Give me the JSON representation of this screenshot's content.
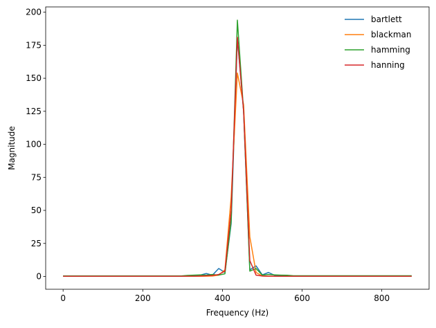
{
  "chart_data": {
    "type": "line",
    "x": [
      0,
      15.625,
      31.25,
      46.875,
      62.5,
      78.125,
      93.75,
      109.375,
      125,
      140.625,
      156.25,
      171.875,
      187.5,
      203.125,
      218.75,
      234.375,
      250,
      265.625,
      281.25,
      296.875,
      312.5,
      328.125,
      343.75,
      359.375,
      375,
      390.625,
      406.25,
      421.875,
      437.5,
      453.125,
      468.75,
      484.375,
      500,
      515.625,
      531.25,
      546.875,
      562.5,
      578.125,
      593.75,
      609.375,
      625,
      640.625,
      656.25,
      671.875,
      687.5,
      703.125,
      718.75,
      734.375,
      750,
      765.625,
      781.25,
      796.875,
      812.5,
      828.125,
      843.75,
      859.375,
      875
    ],
    "series": [
      {
        "name": "bartlett",
        "color": "#1f77b4",
        "values": [
          0.3,
          0.3,
          0.3,
          0.3,
          0.3,
          0.3,
          0.3,
          0.3,
          0.3,
          0.3,
          0.3,
          0.3,
          0.3,
          0.3,
          0.3,
          0.3,
          0.3,
          0.3,
          0.3,
          0.3,
          0.5,
          0.8,
          1,
          2.2,
          1,
          6,
          3,
          40,
          180,
          125,
          5,
          8,
          1.2,
          3,
          0.8,
          0.6,
          0.5,
          0.3,
          0.3,
          0.3,
          0.3,
          0.3,
          0.3,
          0.3,
          0.3,
          0.3,
          0.3,
          0.3,
          0.3,
          0.3,
          0.3,
          0.3,
          0.3,
          0.3,
          0.3,
          0.3,
          0.3
        ]
      },
      {
        "name": "blackman",
        "color": "#ff7f0e",
        "values": [
          0.1,
          0.1,
          0.1,
          0.1,
          0.1,
          0.1,
          0.1,
          0.1,
          0.1,
          0.1,
          0.1,
          0.1,
          0.1,
          0.1,
          0.1,
          0.1,
          0.1,
          0.1,
          0.1,
          0.1,
          0.1,
          0.1,
          0.1,
          0.2,
          0.3,
          1,
          5,
          60,
          154,
          130,
          30,
          3,
          0.3,
          0.1,
          0.1,
          0.1,
          0.1,
          0.1,
          0.1,
          0.1,
          0.1,
          0.1,
          0.1,
          0.1,
          0.1,
          0.1,
          0.1,
          0.1,
          0.1,
          0.1,
          0.1,
          0.1,
          0.1,
          0.1,
          0.1,
          0.1,
          0.1
        ]
      },
      {
        "name": "hamming",
        "color": "#2ca02c",
        "values": [
          0.4,
          0.4,
          0.4,
          0.4,
          0.4,
          0.4,
          0.4,
          0.4,
          0.4,
          0.4,
          0.4,
          0.4,
          0.4,
          0.4,
          0.4,
          0.4,
          0.4,
          0.4,
          0.4,
          0.4,
          0.8,
          1,
          1.2,
          1,
          1.5,
          1,
          2,
          42,
          194,
          125,
          4,
          6,
          1,
          1.5,
          1.2,
          1,
          0.9,
          0.5,
          0.5,
          0.5,
          0.5,
          0.5,
          0.5,
          0.5,
          0.5,
          0.5,
          0.5,
          0.5,
          0.5,
          0.5,
          0.5,
          0.5,
          0.5,
          0.5,
          0.5,
          0.5,
          0.5
        ]
      },
      {
        "name": "hanning",
        "color": "#d62728",
        "values": [
          0.1,
          0.1,
          0.1,
          0.1,
          0.1,
          0.1,
          0.1,
          0.1,
          0.1,
          0.1,
          0.1,
          0.1,
          0.1,
          0.1,
          0.1,
          0.1,
          0.1,
          0.1,
          0.1,
          0.1,
          0.2,
          0.2,
          0.3,
          0.5,
          0.8,
          1.5,
          4,
          50,
          181,
          125,
          12,
          1,
          0.3,
          0.2,
          0.2,
          0.1,
          0.1,
          0.1,
          0.1,
          0.1,
          0.1,
          0.1,
          0.1,
          0.1,
          0.1,
          0.1,
          0.1,
          0.1,
          0.1,
          0.1,
          0.1,
          0.1,
          0.1,
          0.1,
          0.1,
          0.1,
          0.1
        ]
      }
    ],
    "xlabel": "Frequency (Hz)",
    "ylabel": "Magnitude",
    "xlim": [
      -43.75,
      918.75
    ],
    "ylim": [
      -9.7,
      204
    ],
    "xticks": [
      0,
      200,
      400,
      600,
      800
    ],
    "yticks": [
      0,
      25,
      50,
      75,
      100,
      125,
      150,
      175,
      200
    ],
    "legend": "upper right",
    "grid": false
  }
}
